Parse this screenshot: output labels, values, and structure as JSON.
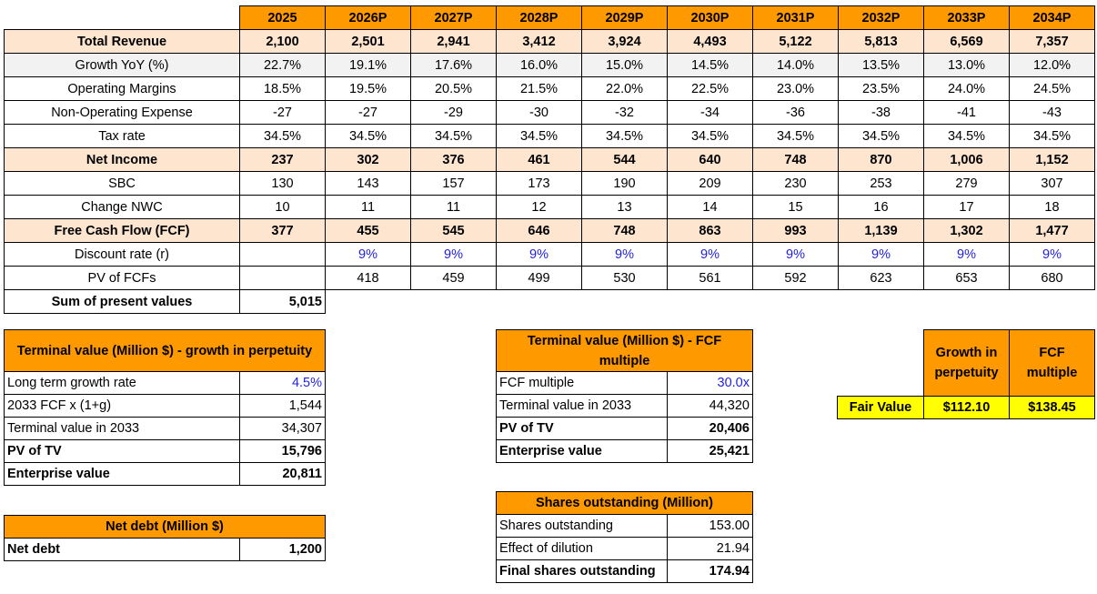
{
  "main_table": {
    "years": [
      "2025",
      "2026P",
      "2027P",
      "2028P",
      "2029P",
      "2030P",
      "2031P",
      "2032P",
      "2033P",
      "2034P"
    ],
    "rows": [
      {
        "label": "Total Revenue",
        "style": "peach",
        "values": [
          "2,100",
          "2,501",
          "2,941",
          "3,412",
          "3,924",
          "4,493",
          "5,122",
          "5,813",
          "6,569",
          "7,357"
        ]
      },
      {
        "label": "Growth YoY (%)",
        "style": "grey",
        "values": [
          "22.7%",
          "19.1%",
          "17.6%",
          "16.0%",
          "15.0%",
          "14.5%",
          "14.0%",
          "13.5%",
          "13.0%",
          "12.0%"
        ]
      },
      {
        "label": "Operating Margins",
        "style": "plain",
        "values": [
          "18.5%",
          "19.5%",
          "20.5%",
          "21.5%",
          "22.0%",
          "22.5%",
          "23.0%",
          "23.5%",
          "24.0%",
          "24.5%"
        ]
      },
      {
        "label": "Non-Operating Expense",
        "style": "plain",
        "values": [
          "-27",
          "-27",
          "-29",
          "-30",
          "-32",
          "-34",
          "-36",
          "-38",
          "-41",
          "-43"
        ]
      },
      {
        "label": "Tax rate",
        "style": "plain",
        "values": [
          "34.5%",
          "34.5%",
          "34.5%",
          "34.5%",
          "34.5%",
          "34.5%",
          "34.5%",
          "34.5%",
          "34.5%",
          "34.5%"
        ]
      },
      {
        "label": "Net Income",
        "style": "peach",
        "values": [
          "237",
          "302",
          "376",
          "461",
          "544",
          "640",
          "748",
          "870",
          "1,006",
          "1,152"
        ]
      },
      {
        "label": "SBC",
        "style": "plain",
        "values": [
          "130",
          "143",
          "157",
          "173",
          "190",
          "209",
          "230",
          "253",
          "279",
          "307"
        ]
      },
      {
        "label": "Change NWC",
        "style": "plain",
        "values": [
          "10",
          "11",
          "11",
          "12",
          "13",
          "14",
          "15",
          "16",
          "17",
          "18"
        ]
      },
      {
        "label": "Free Cash Flow (FCF)",
        "style": "peach",
        "values": [
          "377",
          "455",
          "545",
          "646",
          "748",
          "863",
          "993",
          "1,139",
          "1,302",
          "1,477"
        ]
      },
      {
        "label": "Discount rate (r)",
        "style": "blue",
        "values": [
          "",
          "9%",
          "9%",
          "9%",
          "9%",
          "9%",
          "9%",
          "9%",
          "9%",
          "9%"
        ]
      },
      {
        "label": "PV of FCFs",
        "style": "plain",
        "values": [
          "",
          "418",
          "459",
          "499",
          "530",
          "561",
          "592",
          "623",
          "653",
          "680"
        ]
      }
    ],
    "sum_pv": {
      "label": "Sum of present values",
      "value": "5,015"
    }
  },
  "tv_growth": {
    "title": "Terminal value (Million $) - growth in perpetuity",
    "rows": [
      {
        "label": "Long term growth rate",
        "value": "4.5%"
      },
      {
        "label": "2033 FCF x (1+g)",
        "value": "1,544"
      },
      {
        "label": "Terminal value in 2033",
        "value": "34,307"
      },
      {
        "label": "PV of TV",
        "value": "15,796"
      },
      {
        "label": "Enterprise value",
        "value": "20,811"
      }
    ]
  },
  "net_debt": {
    "title": "Net debt (Million $)",
    "label": "Net debt",
    "value": "1,200"
  },
  "tv_multiple": {
    "title": "Terminal value (Million $) - FCF multiple",
    "rows": [
      {
        "label": "FCF multiple",
        "value": "30.0x"
      },
      {
        "label": "Terminal value in 2033",
        "value": "44,320"
      },
      {
        "label": "PV of TV",
        "value": "20,406"
      },
      {
        "label": "Enterprise value",
        "value": "25,421"
      }
    ]
  },
  "shares": {
    "title": "Shares outstanding (Million)",
    "rows": [
      {
        "label": "Shares outstanding",
        "value": "153.00"
      },
      {
        "label": "Effect of dilution",
        "value": "21.94"
      },
      {
        "label": "Final shares outstanding",
        "value": "174.94"
      }
    ]
  },
  "fair_value": {
    "col1": "Growth in perpetuity",
    "col2": "FCF multiple",
    "label": "Fair Value",
    "value1": "$112.10",
    "value2": "$138.45"
  },
  "colors": {
    "header_orange": "#ff9900",
    "highlight_peach": "#fde5cf",
    "input_blue": "#1f1fe6",
    "fair_value_yellow": "#ffff00"
  }
}
